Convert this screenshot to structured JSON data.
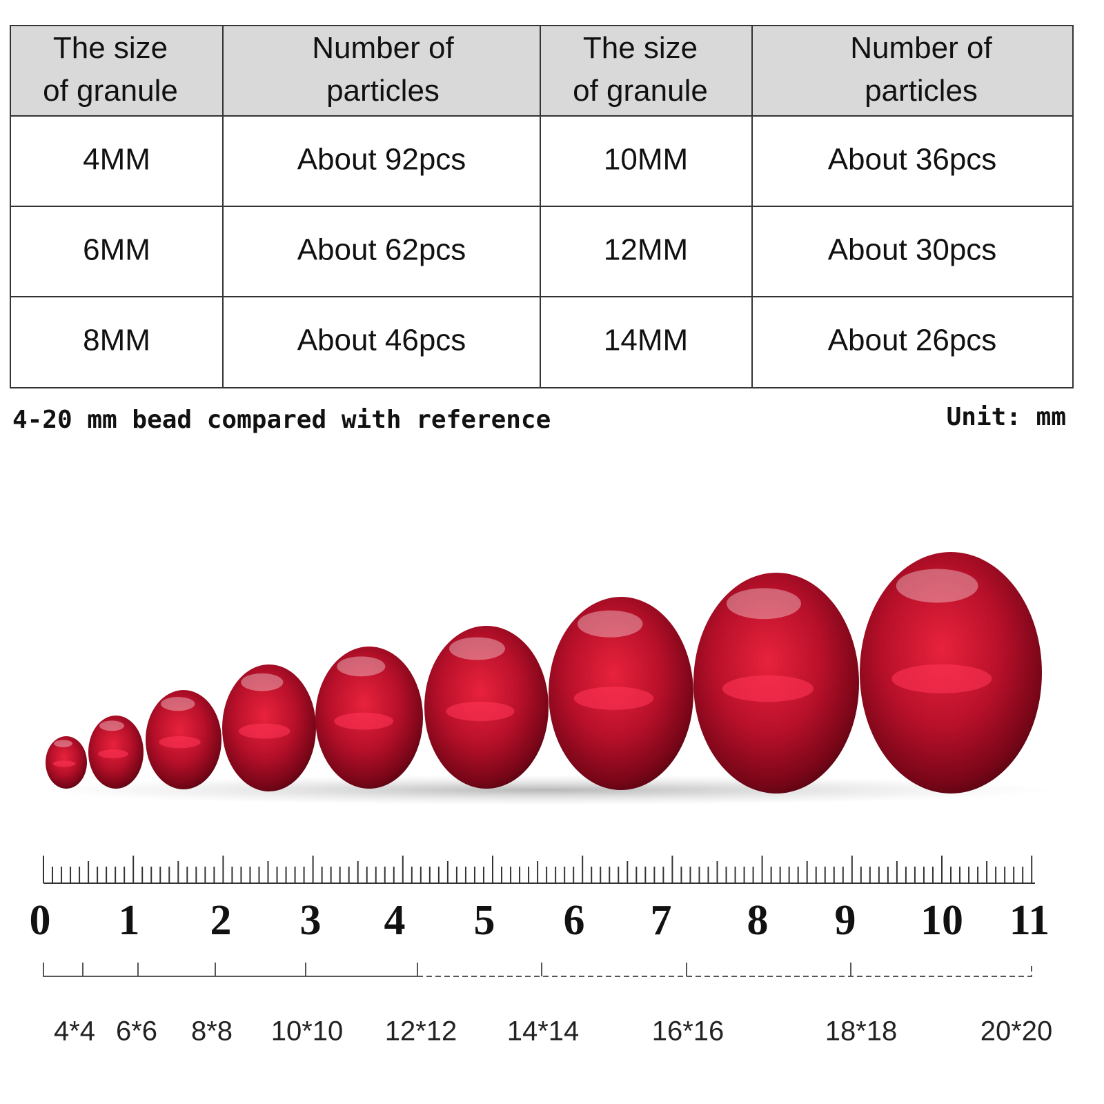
{
  "table": {
    "header": [
      "The size of granule",
      "Number of particles",
      "The size of granule",
      "Number of particles"
    ],
    "rows": [
      [
        "4MM",
        "About 92pcs",
        "10MM",
        "About 36pcs"
      ],
      [
        "6MM",
        "About 62pcs",
        "12MM",
        "About 30pcs"
      ],
      [
        "8MM",
        "About 46pcs",
        "14MM",
        "About 26pcs"
      ]
    ]
  },
  "caption": "4-20 mm bead compared with reference",
  "unit": "Unit: mm",
  "ruler": {
    "labels": [
      "0",
      "1",
      "2",
      "3",
      "4",
      "5",
      "6",
      "7",
      "8",
      "9",
      "10",
      "11"
    ]
  },
  "sizes": [
    "4*4",
    "6*6",
    "8*8",
    "10*10",
    "12*12",
    "14*14",
    "16*16",
    "18*18",
    "20*20"
  ]
}
